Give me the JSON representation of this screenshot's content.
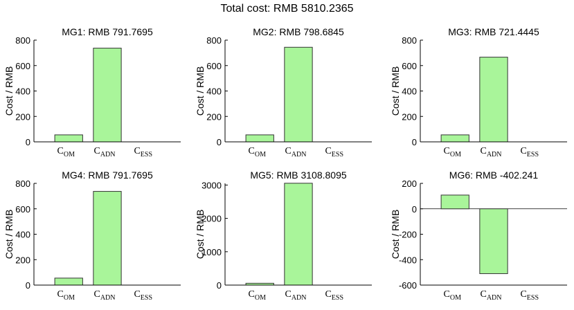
{
  "title": "Total cost: RMB 5810.2365",
  "colors": {
    "bar_fill": "#a9f59a",
    "bar_stroke": "#333333",
    "axis": "#000000",
    "zero_line": "#000000"
  },
  "chart_data": [
    {
      "type": "bar",
      "title": "MG1: RMB 791.7695",
      "ylabel": "Cost / RMB",
      "categories": [
        {
          "main": "C",
          "sub": "OM"
        },
        {
          "main": "C",
          "sub": "ADN"
        },
        {
          "main": "C",
          "sub": "ESS"
        }
      ],
      "values": [
        55,
        737,
        0
      ],
      "ylim": [
        0,
        800
      ],
      "yticks": [
        0,
        200,
        400,
        600,
        800
      ],
      "grid": false
    },
    {
      "type": "bar",
      "title": "MG2: RMB 798.6845",
      "ylabel": "Cost / RMB",
      "categories": [
        {
          "main": "C",
          "sub": "OM"
        },
        {
          "main": "C",
          "sub": "ADN"
        },
        {
          "main": "C",
          "sub": "ESS"
        }
      ],
      "values": [
        55,
        744,
        0
      ],
      "ylim": [
        0,
        800
      ],
      "yticks": [
        0,
        200,
        400,
        600,
        800
      ],
      "grid": false
    },
    {
      "type": "bar",
      "title": "MG3: RMB 721.4445",
      "ylabel": "Cost / RMB",
      "categories": [
        {
          "main": "C",
          "sub": "OM"
        },
        {
          "main": "C",
          "sub": "ADN"
        },
        {
          "main": "C",
          "sub": "ESS"
        }
      ],
      "values": [
        55,
        666,
        0
      ],
      "ylim": [
        0,
        800
      ],
      "yticks": [
        0,
        200,
        400,
        600,
        800
      ],
      "grid": false
    },
    {
      "type": "bar",
      "title": "MG4: RMB 791.7695",
      "ylabel": "Cost / RMB",
      "categories": [
        {
          "main": "C",
          "sub": "OM"
        },
        {
          "main": "C",
          "sub": "ADN"
        },
        {
          "main": "C",
          "sub": "ESS"
        }
      ],
      "values": [
        55,
        737,
        0
      ],
      "ylim": [
        0,
        800
      ],
      "yticks": [
        0,
        200,
        400,
        600,
        800
      ],
      "grid": false
    },
    {
      "type": "bar",
      "title": "MG5: RMB 3108.8095",
      "ylabel": "Cost / RMB",
      "categories": [
        {
          "main": "C",
          "sub": "OM"
        },
        {
          "main": "C",
          "sub": "ADN"
        },
        {
          "main": "C",
          "sub": "ESS"
        }
      ],
      "values": [
        55,
        3054,
        0
      ],
      "ylim": [
        0,
        3050
      ],
      "yticks": [
        0,
        1000,
        2000,
        3000
      ],
      "grid": false
    },
    {
      "type": "bar",
      "title": "MG6: RMB -402.241",
      "ylabel": "Cost / RMB",
      "categories": [
        {
          "main": "C",
          "sub": "OM"
        },
        {
          "main": "C",
          "sub": "ADN"
        },
        {
          "main": "C",
          "sub": "ESS"
        }
      ],
      "values": [
        108,
        -510,
        0
      ],
      "ylim": [
        -600,
        200
      ],
      "yticks": [
        -600,
        -400,
        -200,
        0,
        200
      ],
      "zero_line": true,
      "grid": false
    }
  ]
}
